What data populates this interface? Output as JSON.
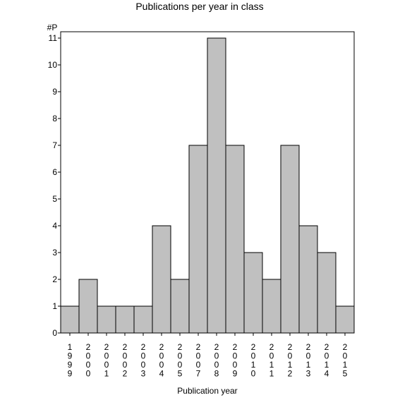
{
  "chart_data": {
    "type": "bar",
    "title": "Publications per year in class",
    "ylabel": "#P",
    "xlabel": "Publication year",
    "categories": [
      "1999",
      "2000",
      "2001",
      "2002",
      "2003",
      "2004",
      "2005",
      "2007",
      "2008",
      "2009",
      "2010",
      "2011",
      "2012",
      "2013",
      "2014",
      "2015"
    ],
    "values": [
      1,
      2,
      1,
      1,
      1,
      4,
      2,
      7,
      11,
      7,
      3,
      2,
      7,
      4,
      3,
      1
    ],
    "ylim": [
      0,
      11
    ],
    "yticks": [
      0,
      1,
      2,
      3,
      4,
      5,
      6,
      7,
      8,
      9,
      10,
      11
    ],
    "grid": false,
    "bar_color": "#c0c0c0",
    "edge_color": "#000000"
  }
}
